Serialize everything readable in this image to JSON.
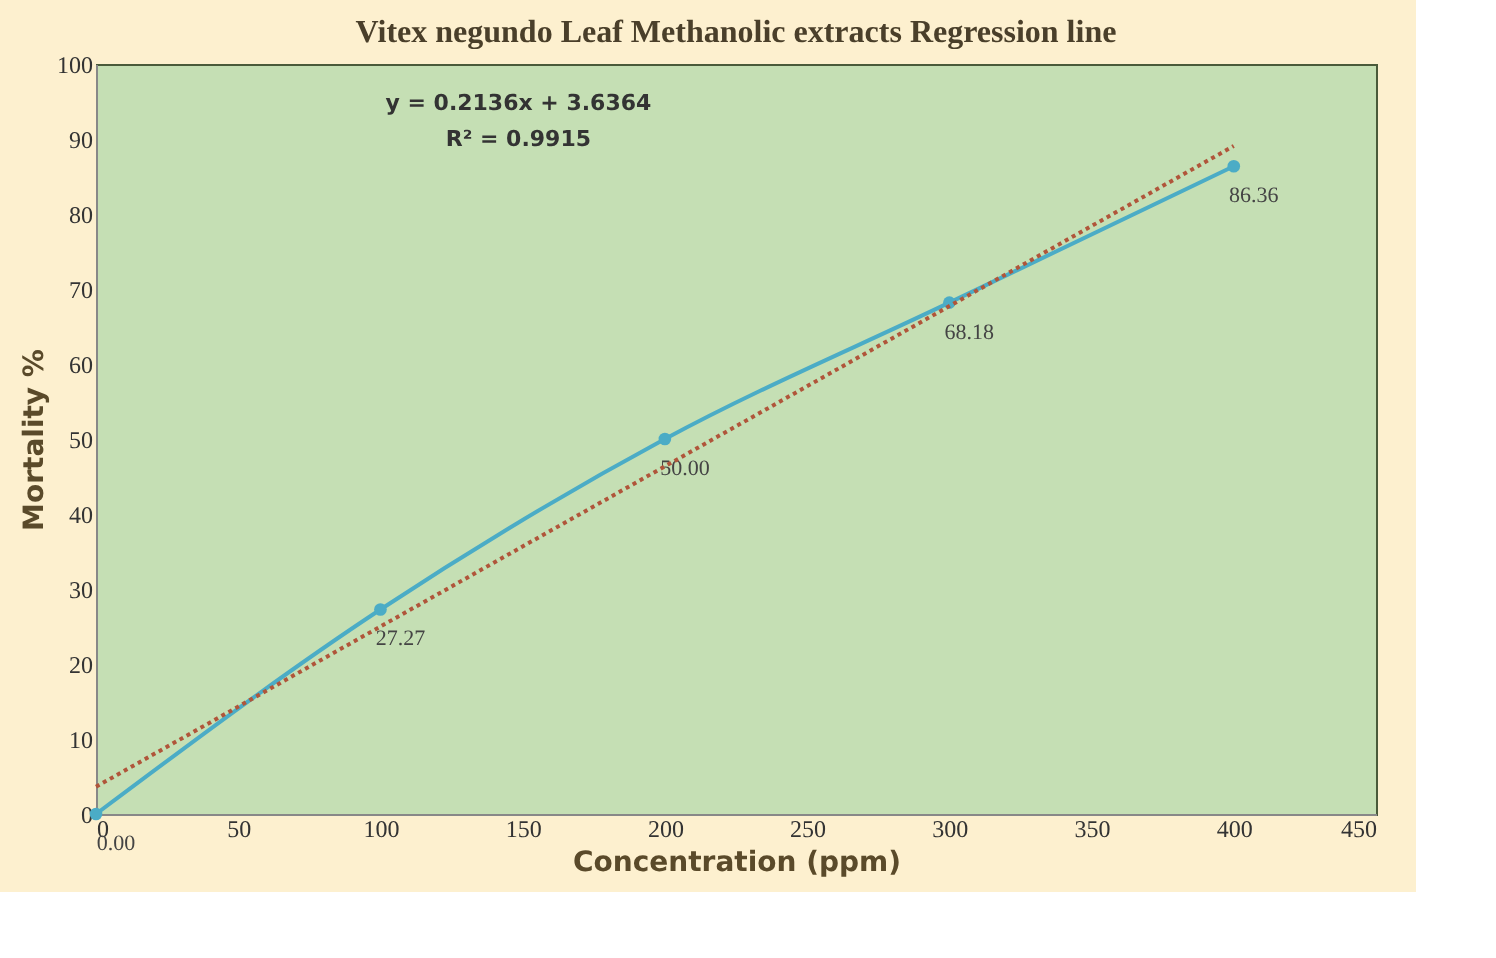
{
  "chart_data": {
    "type": "line",
    "title": "Vitex negundo  Leaf Methanolic extracts Regression line",
    "xlabel": "Concentration (ppm)",
    "ylabel": "Mortality %",
    "x": [
      0,
      100,
      200,
      300,
      400
    ],
    "series": [
      {
        "color": "#4bacc6",
        "values": [
          0,
          27.27,
          50.0,
          68.18,
          86.36
        ],
        "value_labels": [
          "0.00",
          "27.27",
          "50.00",
          "68.18",
          "86.36"
        ],
        "marker": "circle",
        "line_style": "solid"
      },
      {
        "type": "line",
        "x": [
          0,
          400
        ],
        "color": "#b0553a",
        "values": [
          3.6364,
          89.0764
        ],
        "marker": "none",
        "line_style": "dotted"
      }
    ],
    "annotations": [
      "y = 0.2136x + 3.6364",
      "R² = 0.9915"
    ],
    "xlim": [
      0,
      450
    ],
    "xticks": [
      0,
      50,
      100,
      150,
      200,
      250,
      300,
      350,
      400,
      450
    ],
    "ylim": [
      0,
      100
    ],
    "yticks": [
      0,
      10,
      20,
      30,
      40,
      50,
      60,
      70,
      80,
      90,
      100
    ],
    "grid": false,
    "legend": false
  }
}
